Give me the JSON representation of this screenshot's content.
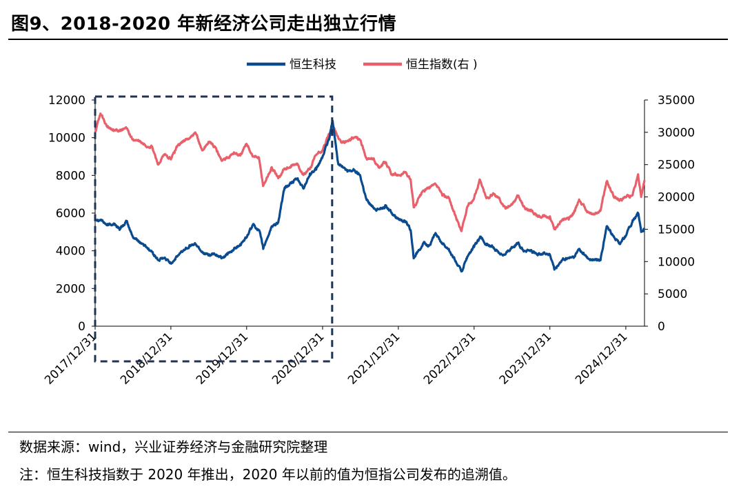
{
  "header": {
    "title": "图9、2018-2020 年新经济公司走出独立行情"
  },
  "footer": {
    "source": "数据来源：wind，兴业证券经济与金融研究院整理",
    "note": "注：恒生科技指数于 2020 年推出，2020 年以前的值为恒指公司发布的追溯值。"
  },
  "colors": {
    "hstech": "#0a4a8f",
    "hsi": "#e8606a",
    "box": "#1e3254"
  },
  "chart_data": {
    "type": "line",
    "title": "",
    "x_tick_labels": [
      "2017/12/31",
      "2018/12/31",
      "2019/12/31",
      "2020/12/31",
      "2021/12/31",
      "2022/12/31",
      "2023/12/31",
      "2024/12/31"
    ],
    "x_range": [
      "2017-12-31",
      "2025-03-31"
    ],
    "y_left": {
      "lim": [
        0,
        12000
      ],
      "ticks": [
        "0",
        "2000",
        "4000",
        "6000",
        "8000",
        "10000",
        "12000"
      ]
    },
    "y_right": {
      "lim": [
        0,
        35000
      ],
      "ticks": [
        "0",
        "5000",
        "10000",
        "15000",
        "20000",
        "25000",
        "30000",
        "35000"
      ]
    },
    "legend_position": "top-center",
    "highlight_box": {
      "x_from": "2017-12-31",
      "x_to": "2021-02-15",
      "style": "dashed"
    },
    "series": [
      {
        "name": "恒生科技",
        "axis": "left",
        "color": "#0a4a8f",
        "points": [
          [
            "2017-12-31",
            5700
          ],
          [
            "2018-01-29",
            5650
          ],
          [
            "2018-02-28",
            5350
          ],
          [
            "2018-03-31",
            5450
          ],
          [
            "2018-04-30",
            5150
          ],
          [
            "2018-05-31",
            5550
          ],
          [
            "2018-06-30",
            4750
          ],
          [
            "2018-07-31",
            4500
          ],
          [
            "2018-08-31",
            4250
          ],
          [
            "2018-09-30",
            3950
          ],
          [
            "2018-10-31",
            3500
          ],
          [
            "2018-11-30",
            3600
          ],
          [
            "2018-12-31",
            3350
          ],
          [
            "2019-01-31",
            3700
          ],
          [
            "2019-02-28",
            4000
          ],
          [
            "2019-03-31",
            4300
          ],
          [
            "2019-04-30",
            4350
          ],
          [
            "2019-05-31",
            3950
          ],
          [
            "2019-06-30",
            3750
          ],
          [
            "2019-07-31",
            3800
          ],
          [
            "2019-08-31",
            3600
          ],
          [
            "2019-09-30",
            3800
          ],
          [
            "2019-10-31",
            4100
          ],
          [
            "2019-11-30",
            4350
          ],
          [
            "2019-12-31",
            4700
          ],
          [
            "2020-01-31",
            5400
          ],
          [
            "2020-02-29",
            5100
          ],
          [
            "2020-03-20",
            4100
          ],
          [
            "2020-04-30",
            5300
          ],
          [
            "2020-05-31",
            5500
          ],
          [
            "2020-06-30",
            7300
          ],
          [
            "2020-07-31",
            7600
          ],
          [
            "2020-08-31",
            7800
          ],
          [
            "2020-09-30",
            7300
          ],
          [
            "2020-10-31",
            8100
          ],
          [
            "2020-11-30",
            8300
          ],
          [
            "2020-12-31",
            9000
          ],
          [
            "2021-01-31",
            9900
          ],
          [
            "2021-02-17",
            10900
          ],
          [
            "2021-03-15",
            8700
          ],
          [
            "2021-04-30",
            8200
          ],
          [
            "2021-05-31",
            8300
          ],
          [
            "2021-06-30",
            8000
          ],
          [
            "2021-07-31",
            6700
          ],
          [
            "2021-08-31",
            6300
          ],
          [
            "2021-09-30",
            6200
          ],
          [
            "2021-10-31",
            6400
          ],
          [
            "2021-11-30",
            6000
          ],
          [
            "2021-12-31",
            5700
          ],
          [
            "2022-01-31",
            5600
          ],
          [
            "2022-02-28",
            5100
          ],
          [
            "2022-03-15",
            3600
          ],
          [
            "2022-04-30",
            4400
          ],
          [
            "2022-05-31",
            4300
          ],
          [
            "2022-06-30",
            4900
          ],
          [
            "2022-07-31",
            4400
          ],
          [
            "2022-08-31",
            4100
          ],
          [
            "2022-09-30",
            3500
          ],
          [
            "2022-10-31",
            2900
          ],
          [
            "2022-11-30",
            3700
          ],
          [
            "2022-12-31",
            4200
          ],
          [
            "2023-01-31",
            4700
          ],
          [
            "2023-02-28",
            4300
          ],
          [
            "2023-03-31",
            4200
          ],
          [
            "2023-04-30",
            3900
          ],
          [
            "2023-05-31",
            3800
          ],
          [
            "2023-06-30",
            4200
          ],
          [
            "2023-07-31",
            4400
          ],
          [
            "2023-08-31",
            4000
          ],
          [
            "2023-09-30",
            4000
          ],
          [
            "2023-10-31",
            3800
          ],
          [
            "2023-11-30",
            3900
          ],
          [
            "2023-12-31",
            3800
          ],
          [
            "2024-01-22",
            3000
          ],
          [
            "2024-02-29",
            3500
          ],
          [
            "2024-03-31",
            3600
          ],
          [
            "2024-04-30",
            3700
          ],
          [
            "2024-05-20",
            4100
          ],
          [
            "2024-06-30",
            3600
          ],
          [
            "2024-07-31",
            3500
          ],
          [
            "2024-08-31",
            3500
          ],
          [
            "2024-09-30",
            5300
          ],
          [
            "2024-10-31",
            4800
          ],
          [
            "2024-11-30",
            4400
          ],
          [
            "2024-12-31",
            4800
          ],
          [
            "2025-01-31",
            5500
          ],
          [
            "2025-02-28",
            6000
          ],
          [
            "2025-03-15",
            5000
          ],
          [
            "2025-03-31",
            5200
          ]
        ]
      },
      {
        "name": "恒生指数(右 )",
        "axis": "right",
        "color": "#e8606a",
        "points": [
          [
            "2017-12-31",
            30000
          ],
          [
            "2018-01-26",
            32900
          ],
          [
            "2018-02-28",
            30800
          ],
          [
            "2018-03-31",
            30200
          ],
          [
            "2018-04-30",
            30400
          ],
          [
            "2018-05-31",
            30600
          ],
          [
            "2018-06-30",
            28900
          ],
          [
            "2018-07-31",
            28600
          ],
          [
            "2018-08-31",
            27900
          ],
          [
            "2018-09-30",
            27800
          ],
          [
            "2018-10-31",
            25000
          ],
          [
            "2018-11-30",
            26500
          ],
          [
            "2018-12-31",
            25800
          ],
          [
            "2019-01-31",
            27900
          ],
          [
            "2019-02-28",
            28600
          ],
          [
            "2019-03-31",
            29100
          ],
          [
            "2019-04-30",
            29800
          ],
          [
            "2019-05-31",
            27200
          ],
          [
            "2019-06-30",
            28500
          ],
          [
            "2019-07-31",
            27800
          ],
          [
            "2019-08-31",
            25700
          ],
          [
            "2019-09-30",
            26000
          ],
          [
            "2019-10-31",
            26900
          ],
          [
            "2019-11-30",
            26400
          ],
          [
            "2019-12-31",
            28200
          ],
          [
            "2020-01-31",
            26300
          ],
          [
            "2020-02-28",
            26100
          ],
          [
            "2020-03-19",
            21700
          ],
          [
            "2020-04-30",
            24600
          ],
          [
            "2020-05-31",
            22900
          ],
          [
            "2020-06-30",
            24400
          ],
          [
            "2020-07-31",
            24600
          ],
          [
            "2020-08-31",
            25100
          ],
          [
            "2020-09-30",
            23400
          ],
          [
            "2020-10-31",
            24300
          ],
          [
            "2020-11-30",
            26500
          ],
          [
            "2020-12-31",
            27200
          ],
          [
            "2021-02-17",
            31000
          ],
          [
            "2021-03-31",
            28400
          ],
          [
            "2021-04-30",
            28700
          ],
          [
            "2021-05-31",
            29200
          ],
          [
            "2021-06-30",
            28800
          ],
          [
            "2021-07-31",
            26000
          ],
          [
            "2021-08-31",
            25800
          ],
          [
            "2021-09-30",
            24500
          ],
          [
            "2021-10-31",
            25400
          ],
          [
            "2021-11-30",
            23400
          ],
          [
            "2021-12-31",
            23400
          ],
          [
            "2022-01-31",
            23800
          ],
          [
            "2022-02-28",
            22700
          ],
          [
            "2022-03-15",
            18400
          ],
          [
            "2022-04-30",
            21000
          ],
          [
            "2022-05-31",
            21400
          ],
          [
            "2022-06-30",
            21900
          ],
          [
            "2022-07-31",
            20200
          ],
          [
            "2022-08-31",
            19900
          ],
          [
            "2022-09-30",
            17200
          ],
          [
            "2022-10-31",
            14700
          ],
          [
            "2022-11-30",
            18600
          ],
          [
            "2022-12-31",
            19800
          ],
          [
            "2023-01-27",
            22700
          ],
          [
            "2023-02-28",
            19800
          ],
          [
            "2023-03-31",
            20400
          ],
          [
            "2023-04-30",
            19900
          ],
          [
            "2023-05-31",
            18200
          ],
          [
            "2023-06-30",
            18900
          ],
          [
            "2023-07-31",
            20100
          ],
          [
            "2023-08-31",
            18400
          ],
          [
            "2023-09-30",
            17800
          ],
          [
            "2023-10-31",
            17100
          ],
          [
            "2023-11-30",
            17000
          ],
          [
            "2023-12-31",
            17000
          ],
          [
            "2024-01-22",
            15000
          ],
          [
            "2024-02-29",
            16500
          ],
          [
            "2024-03-31",
            16500
          ],
          [
            "2024-04-30",
            17800
          ],
          [
            "2024-05-20",
            19600
          ],
          [
            "2024-06-30",
            17700
          ],
          [
            "2024-07-31",
            17300
          ],
          [
            "2024-08-31",
            17900
          ],
          [
            "2024-09-30",
            22400
          ],
          [
            "2024-10-31",
            20300
          ],
          [
            "2024-11-30",
            19400
          ],
          [
            "2024-12-31",
            20000
          ],
          [
            "2025-01-31",
            20200
          ],
          [
            "2025-02-28",
            23500
          ],
          [
            "2025-03-15",
            20000
          ],
          [
            "2025-03-31",
            22600
          ]
        ]
      }
    ]
  }
}
